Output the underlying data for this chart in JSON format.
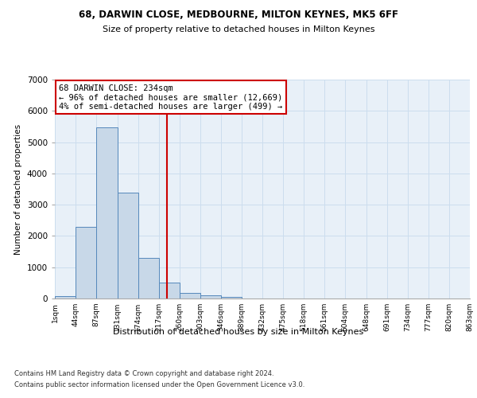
{
  "title1": "68, DARWIN CLOSE, MEDBOURNE, MILTON KEYNES, MK5 6FF",
  "title2": "Size of property relative to detached houses in Milton Keynes",
  "xlabel": "Distribution of detached houses by size in Milton Keynes",
  "ylabel": "Number of detached properties",
  "footnote1": "Contains HM Land Registry data © Crown copyright and database right 2024.",
  "footnote2": "Contains public sector information licensed under the Open Government Licence v3.0.",
  "annotation_title": "68 DARWIN CLOSE: 234sqm",
  "annotation_line1": "← 96% of detached houses are smaller (12,669)",
  "annotation_line2": "4% of semi-detached houses are larger (499) →",
  "subject_size": 234,
  "bin_edges": [
    1,
    44,
    87,
    131,
    174,
    217,
    260,
    303,
    346,
    389,
    432,
    475,
    518,
    561,
    604,
    648,
    691,
    734,
    777,
    820,
    863
  ],
  "bin_counts": [
    80,
    2280,
    5480,
    3390,
    1310,
    500,
    190,
    100,
    60,
    0,
    0,
    0,
    0,
    0,
    0,
    0,
    0,
    0,
    0,
    0
  ],
  "bar_color": "#c8d8e8",
  "bar_edge_color": "#5588bb",
  "vline_color": "#cc0000",
  "vline_x": 234,
  "annotation_box_color": "#cc0000",
  "annotation_bg": "#ffffff",
  "grid_color": "#ccddee",
  "ylim": [
    0,
    7000
  ],
  "xlim": [
    1,
    863
  ],
  "bg_color": "#e8f0f8",
  "tick_labels": [
    "1sqm",
    "44sqm",
    "87sqm",
    "131sqm",
    "174sqm",
    "217sqm",
    "260sqm",
    "303sqm",
    "346sqm",
    "389sqm",
    "432sqm",
    "475sqm",
    "518sqm",
    "561sqm",
    "604sqm",
    "648sqm",
    "691sqm",
    "734sqm",
    "777sqm",
    "820sqm",
    "863sqm"
  ]
}
